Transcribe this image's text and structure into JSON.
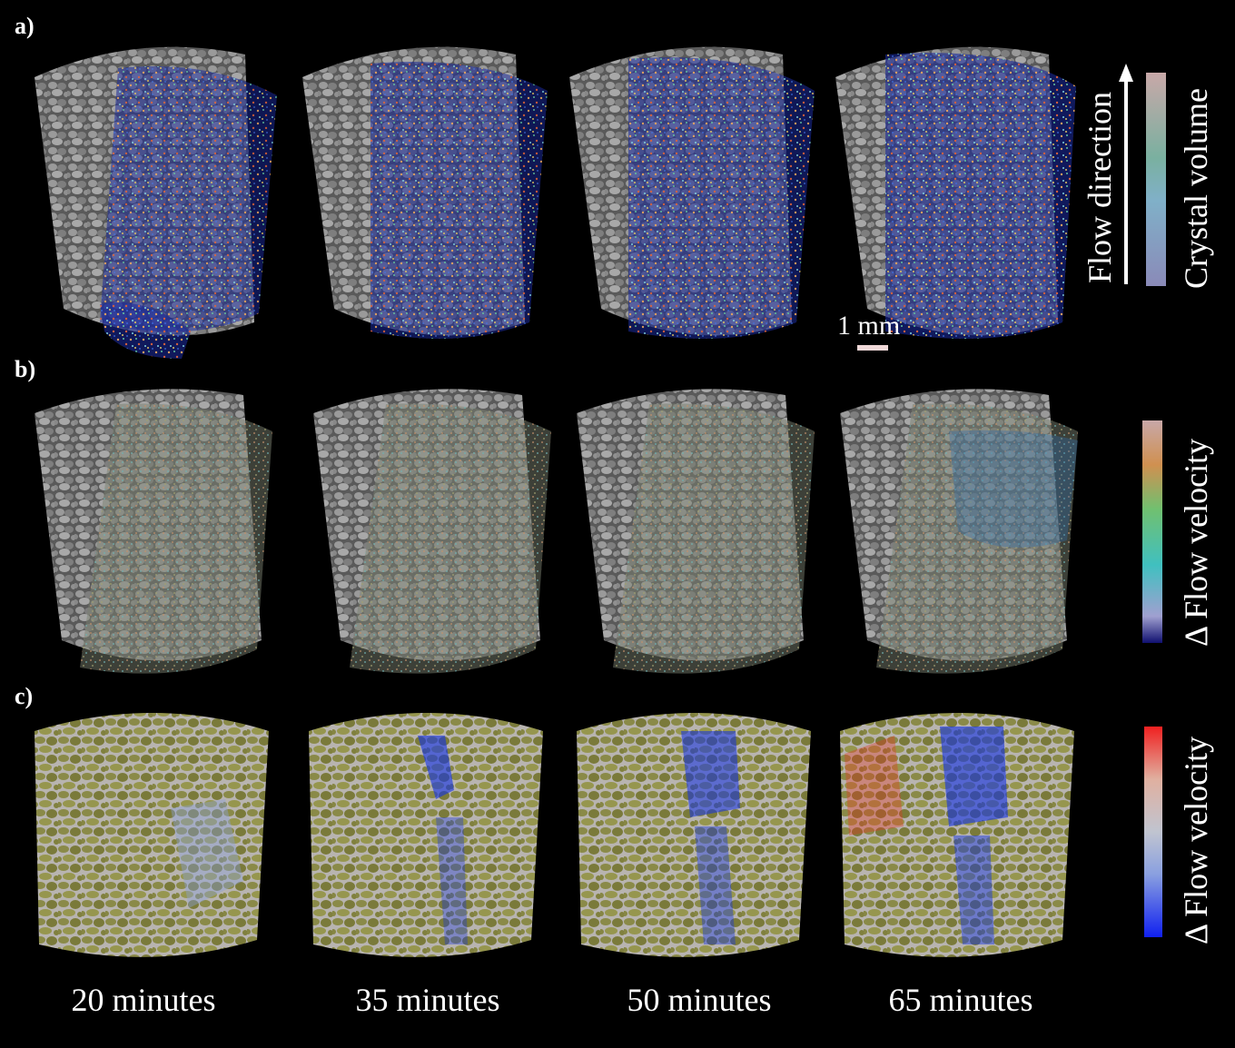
{
  "panels": {
    "a": "a)",
    "b": "b)",
    "c": "c)"
  },
  "time_labels": [
    "20 minutes",
    "35 minutes",
    "50 minutes",
    "65 minutes"
  ],
  "legends": {
    "flow_direction": "Flow direction",
    "crystal_volume": "Crystal volume",
    "flow_velocity_b": "Δ Flow velocity",
    "flow_velocity_c": "Δ Flow velocity"
  },
  "scale_bar": "1 mm",
  "colors": {
    "background": "#000000",
    "rock": "#8c8c8c",
    "crystal_low": "#1a2aa8",
    "crystal_high": "#d8a070",
    "grain_olive": "#8a8a48",
    "pore_light": "#b8c4d8",
    "increase_red": "#e83020",
    "decrease_blue": "#1030e8"
  }
}
